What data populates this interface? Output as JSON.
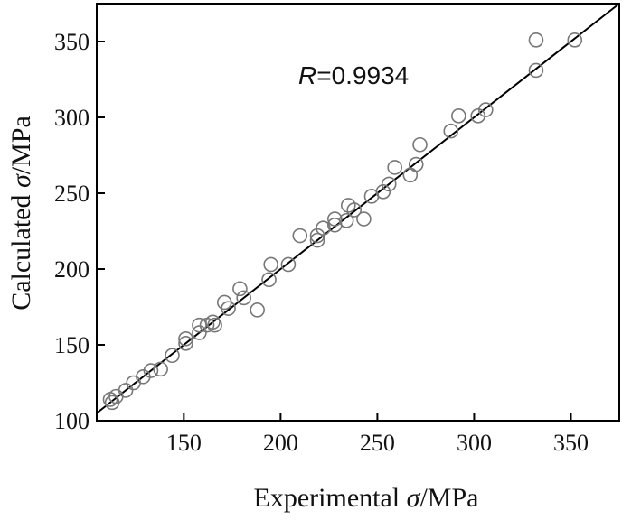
{
  "chart_data": {
    "type": "scatter",
    "title": "",
    "xlabel": {
      "prefix": "Experimental ",
      "symbol": "σ",
      "suffix": "/MPa"
    },
    "ylabel": {
      "prefix": "Calculated ",
      "symbol": "σ",
      "suffix": "/MPa"
    },
    "xlim": [
      105,
      375
    ],
    "ylim": [
      100,
      375
    ],
    "xticks": [
      150,
      200,
      250,
      300,
      350
    ],
    "yticks": [
      100,
      150,
      200,
      250,
      300,
      350
    ],
    "xtick_labels": [
      "150",
      "200",
      "250",
      "300",
      "350"
    ],
    "ytick_labels": [
      "100",
      "150",
      "200",
      "250",
      "300",
      "350"
    ],
    "grid": false,
    "legend": "none",
    "annotation": {
      "symbol": "R",
      "text": "=0.9934"
    },
    "fit_line": {
      "x": [
        105,
        375
      ],
      "y": [
        105,
        375
      ]
    },
    "marker_color": "#777777",
    "line_color": "#000000",
    "points": [
      {
        "x": 112,
        "y": 114
      },
      {
        "x": 113,
        "y": 112
      },
      {
        "x": 115,
        "y": 116
      },
      {
        "x": 120,
        "y": 120
      },
      {
        "x": 124,
        "y": 125
      },
      {
        "x": 129,
        "y": 129
      },
      {
        "x": 133,
        "y": 133
      },
      {
        "x": 138,
        "y": 134
      },
      {
        "x": 144,
        "y": 143
      },
      {
        "x": 151,
        "y": 151
      },
      {
        "x": 151,
        "y": 154
      },
      {
        "x": 158,
        "y": 158
      },
      {
        "x": 158,
        "y": 163
      },
      {
        "x": 162,
        "y": 163
      },
      {
        "x": 165,
        "y": 165
      },
      {
        "x": 166,
        "y": 163
      },
      {
        "x": 171,
        "y": 178
      },
      {
        "x": 173,
        "y": 174
      },
      {
        "x": 179,
        "y": 187
      },
      {
        "x": 181,
        "y": 181
      },
      {
        "x": 188,
        "y": 173
      },
      {
        "x": 194,
        "y": 193
      },
      {
        "x": 195,
        "y": 203
      },
      {
        "x": 204,
        "y": 203
      },
      {
        "x": 210,
        "y": 222
      },
      {
        "x": 219,
        "y": 219
      },
      {
        "x": 219,
        "y": 222
      },
      {
        "x": 222,
        "y": 227
      },
      {
        "x": 228,
        "y": 229
      },
      {
        "x": 228,
        "y": 233
      },
      {
        "x": 234,
        "y": 232
      },
      {
        "x": 235,
        "y": 242
      },
      {
        "x": 238,
        "y": 239
      },
      {
        "x": 243,
        "y": 233
      },
      {
        "x": 247,
        "y": 248
      },
      {
        "x": 253,
        "y": 251
      },
      {
        "x": 256,
        "y": 256
      },
      {
        "x": 259,
        "y": 267
      },
      {
        "x": 267,
        "y": 262
      },
      {
        "x": 270,
        "y": 269
      },
      {
        "x": 272,
        "y": 282
      },
      {
        "x": 288,
        "y": 291
      },
      {
        "x": 292,
        "y": 301
      },
      {
        "x": 302,
        "y": 301
      },
      {
        "x": 306,
        "y": 305
      },
      {
        "x": 332,
        "y": 351
      },
      {
        "x": 332,
        "y": 331
      },
      {
        "x": 352,
        "y": 351
      }
    ]
  }
}
